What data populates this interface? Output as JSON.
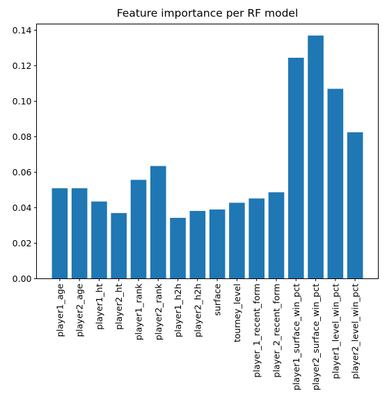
{
  "chart_data": {
    "type": "bar",
    "title": "Feature importance per RF model",
    "xlabel": "",
    "ylabel": "",
    "categories": [
      "player1_age",
      "player2_age",
      "player1_ht",
      "player2_ht",
      "player1_rank",
      "player2_rank",
      "player1_h2h",
      "player2_h2h",
      "surface",
      "tourney_level",
      "player_1_recent_form",
      "player_2_recent_form",
      "player1_surface_win_pct",
      "player2_surface_win_pct",
      "player1_level_win_pct",
      "player2_level_win_pct"
    ],
    "values": [
      0.051,
      0.051,
      0.0435,
      0.037,
      0.0557,
      0.0635,
      0.0343,
      0.0382,
      0.039,
      0.0428,
      0.0452,
      0.0487,
      0.1245,
      0.137,
      0.107,
      0.0825
    ],
    "ylim": [
      0,
      0.1435
    ],
    "yticks": [
      "0.00",
      "0.02",
      "0.04",
      "0.06",
      "0.08",
      "0.10",
      "0.12",
      "0.14"
    ],
    "grid": false,
    "bar_color": "#1f77b4"
  }
}
